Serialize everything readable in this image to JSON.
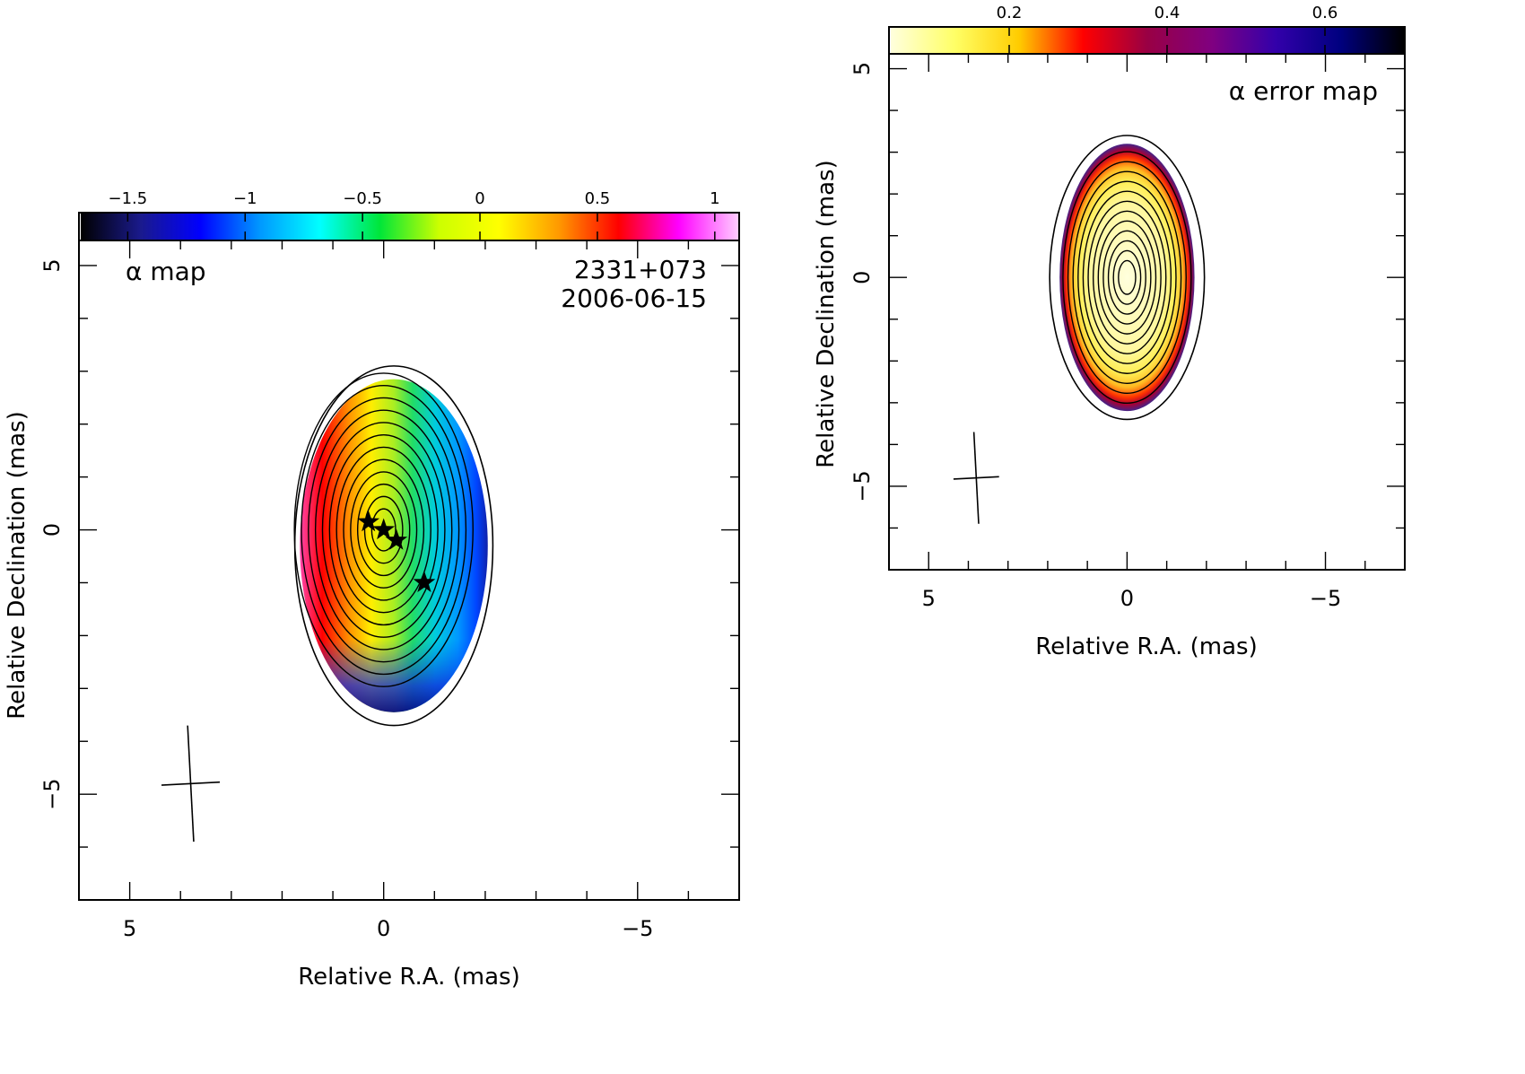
{
  "chart_data": [
    {
      "type": "heatmap",
      "panel": "alpha-map",
      "annotations": {
        "map_label": "α map",
        "source": "2331+073",
        "date": "2006-06-15"
      },
      "xlabel": "Relative R.A. (mas)",
      "ylabel": "Relative Declination (mas)",
      "xlim": [
        6.0,
        -7.0
      ],
      "ylim": [
        -7.0,
        6.0
      ],
      "x_ticks": [
        5,
        0,
        -5
      ],
      "x_tick_labels": [
        "5",
        "0",
        "−5"
      ],
      "y_ticks": [
        5,
        0,
        -5
      ],
      "y_tick_labels": [
        "5",
        "0",
        "−5"
      ],
      "colorbar": {
        "range": [
          -1.7,
          1.1
        ],
        "ticks": [
          -1.5,
          -1,
          -0.5,
          0,
          0.5,
          1
        ],
        "tick_labels": [
          "−1.5",
          "−1",
          "−0.5",
          "0",
          "0.5",
          "1"
        ],
        "palette": [
          "#000000",
          "#1a1a8c",
          "#0000ff",
          "#0099ff",
          "#00ffff",
          "#00e639",
          "#ccff00",
          "#ffff00",
          "#ff9900",
          "#ff0000",
          "#ff00ff",
          "#ffccff"
        ]
      },
      "emission_region": {
        "center": [
          -0.2,
          -0.3
        ],
        "semi_axis_x": 1.85,
        "semi_axis_y": 3.15,
        "outer_contour_semi_x": 1.95,
        "outer_contour_semi_y": 3.4
      },
      "spectral_index_gradient": {
        "east_value": 0.6,
        "core_value": 0.0,
        "west_value": -1.0,
        "south_edge_value": -1.2
      },
      "contours": {
        "center": [
          0,
          0
        ],
        "count": 12
      },
      "components": [
        {
          "x": 0.3,
          "y": 0.15
        },
        {
          "x": 0.0,
          "y": 0.0
        },
        {
          "x": -0.25,
          "y": -0.2
        },
        {
          "x": -0.8,
          "y": -1.0
        }
      ],
      "beam": {
        "x": 3.8,
        "y": -4.8,
        "major": 2.2,
        "minor": 1.15,
        "pa_deg": 3
      }
    },
    {
      "type": "heatmap",
      "panel": "alpha-error-map",
      "annotations": {
        "map_label": "α error map"
      },
      "xlabel": "Relative R.A. (mas)",
      "ylabel": "Relative Declination (mas)",
      "xlim": [
        6.0,
        -7.0
      ],
      "ylim": [
        -7.0,
        6.0
      ],
      "x_ticks": [
        5,
        0,
        -5
      ],
      "x_tick_labels": [
        "5",
        "0",
        "−5"
      ],
      "y_ticks": [
        5,
        0,
        -5
      ],
      "y_tick_labels": [
        "5",
        "0",
        "−5"
      ],
      "colorbar": {
        "range": [
          0.05,
          0.7
        ],
        "ticks": [
          0.2,
          0.4,
          0.6
        ],
        "tick_labels": [
          "0.2",
          "0.4",
          "0.6"
        ],
        "palette": [
          "#ffffdd",
          "#ffff66",
          "#ffcc00",
          "#ff0000",
          "#990044",
          "#800080",
          "#3300aa",
          "#000080",
          "#000000"
        ]
      },
      "emission_region": {
        "center": [
          0.0,
          0.0
        ],
        "semi_axis_x": 1.7,
        "semi_axis_y": 3.2,
        "outer_contour_semi_x": 1.95,
        "outer_contour_semi_y": 3.4
      },
      "contours": {
        "center": [
          0,
          0
        ],
        "count": 12
      },
      "beam": {
        "x": 3.8,
        "y": -4.8,
        "major": 2.2,
        "minor": 1.15,
        "pa_deg": 3
      }
    }
  ]
}
